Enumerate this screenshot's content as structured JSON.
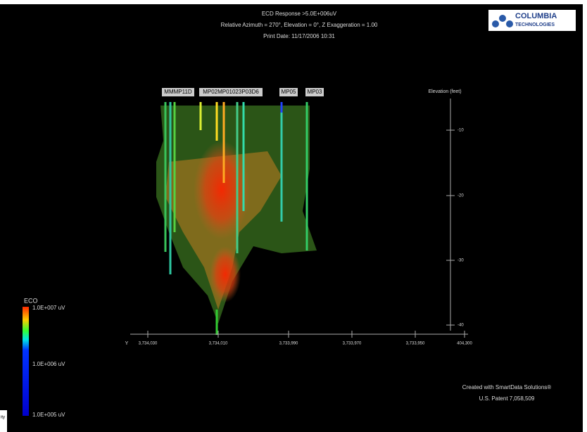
{
  "header": {
    "lines": [
      "ECD Response >5.0E+006uV",
      "Relative Azimuth = 270°, Elevation = 0°, Z Exaggeration = 1.00",
      "Print Date: 11/17/2006 10:31"
    ]
  },
  "logo": {
    "name": "COLUMBIA",
    "sub": "TECHNOLOGIES"
  },
  "wells": [
    "MMMP11D",
    "MP02MP01023P03D6",
    "MP05",
    "MP03"
  ],
  "elevation_axis": {
    "title": "Elevation (feet)",
    "ticks": [
      "-10",
      "-20",
      "-30",
      "-40"
    ]
  },
  "y_axis": {
    "title": "Y",
    "ticks": [
      "3,734,030",
      "3,734,010",
      "3,733,990",
      "3,733,970",
      "3,733,950",
      "404,300"
    ]
  },
  "legend": {
    "title": "ECO",
    "labels": [
      "1.0E+007 uV",
      "1.0E+006 uV",
      "1.0E+005 uV"
    ]
  },
  "footer": {
    "lines": [
      "Created with SmartData Solutions®",
      "U.S. Patent 7,058,509"
    ],
    "corner": "ity"
  }
}
